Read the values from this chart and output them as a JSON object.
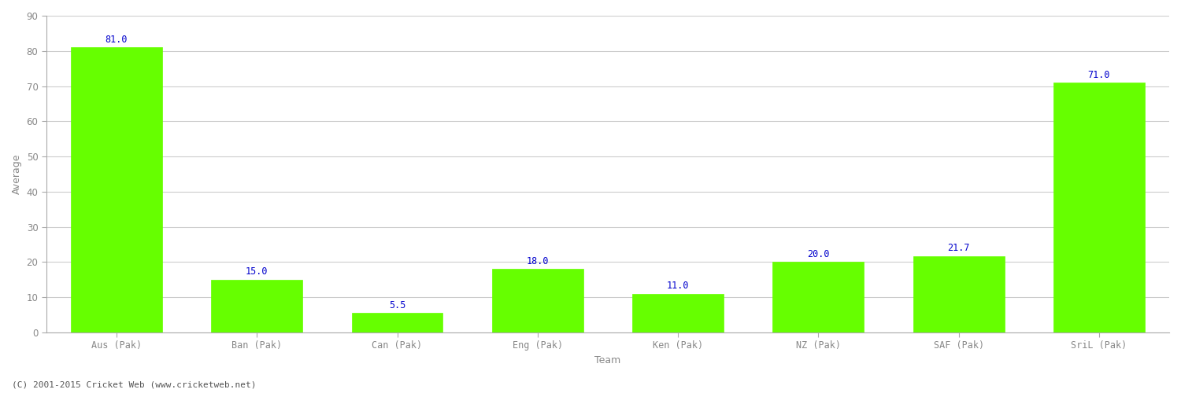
{
  "categories": [
    "Aus (Pak)",
    "Ban (Pak)",
    "Can (Pak)",
    "Eng (Pak)",
    "Ken (Pak)",
    "NZ (Pak)",
    "SAF (Pak)",
    "SriL (Pak)"
  ],
  "values": [
    81.0,
    15.0,
    5.5,
    18.0,
    11.0,
    20.0,
    21.7,
    71.0
  ],
  "bar_color": "#66ff00",
  "label_color": "#0000cc",
  "xlabel": "Team",
  "ylabel": "Average",
  "ylim": [
    0,
    90
  ],
  "yticks": [
    0,
    10,
    20,
    30,
    40,
    50,
    60,
    70,
    80,
    90
  ],
  "background_color": "#ffffff",
  "grid_color": "#cccccc",
  "footer": "(C) 2001-2015 Cricket Web (www.cricketweb.net)",
  "bar_width": 0.65,
  "label_fontsize": 8.5,
  "axis_fontsize": 9,
  "tick_fontsize": 8.5,
  "spine_color": "#aaaaaa",
  "tick_color": "#888888"
}
